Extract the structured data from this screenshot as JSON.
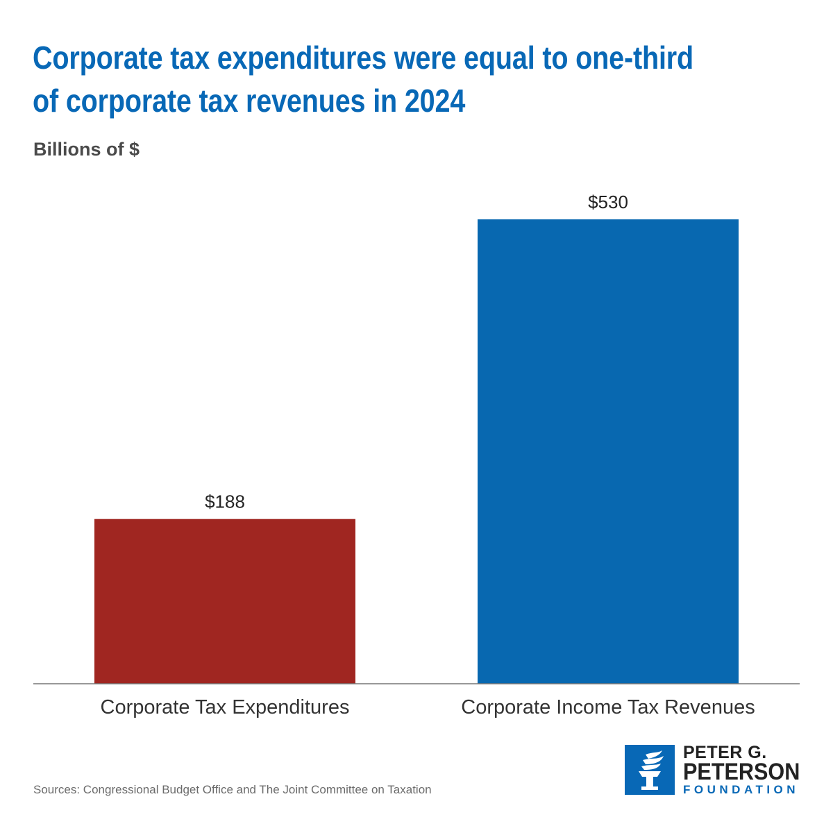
{
  "header": {
    "title": "Corporate tax expenditures were equal to one-third of corporate tax revenues in 2024",
    "subtitle": "Billions of $"
  },
  "chart_data": {
    "type": "bar",
    "title": "Corporate tax expenditures were equal to one-third of corporate tax revenues in 2024",
    "ylabel": "Billions of $",
    "xlabel": "",
    "categories": [
      "Corporate Tax Expenditures",
      "Corporate Income Tax Revenues"
    ],
    "values": [
      188,
      530
    ],
    "data_labels": [
      "$188",
      "$530"
    ],
    "colors": [
      "#a02621",
      "#0868b0"
    ],
    "ylim": [
      0,
      530
    ],
    "grid": false,
    "legend": "none"
  },
  "footer": {
    "source": "Sources: Congressional Budget Office and The Joint Committee on Taxation"
  },
  "logo": {
    "line1": "PETER G.",
    "line2": "PETERSON",
    "line3": "FOUNDATION",
    "brand_color": "#0868b6",
    "icon": "torch-icon"
  }
}
